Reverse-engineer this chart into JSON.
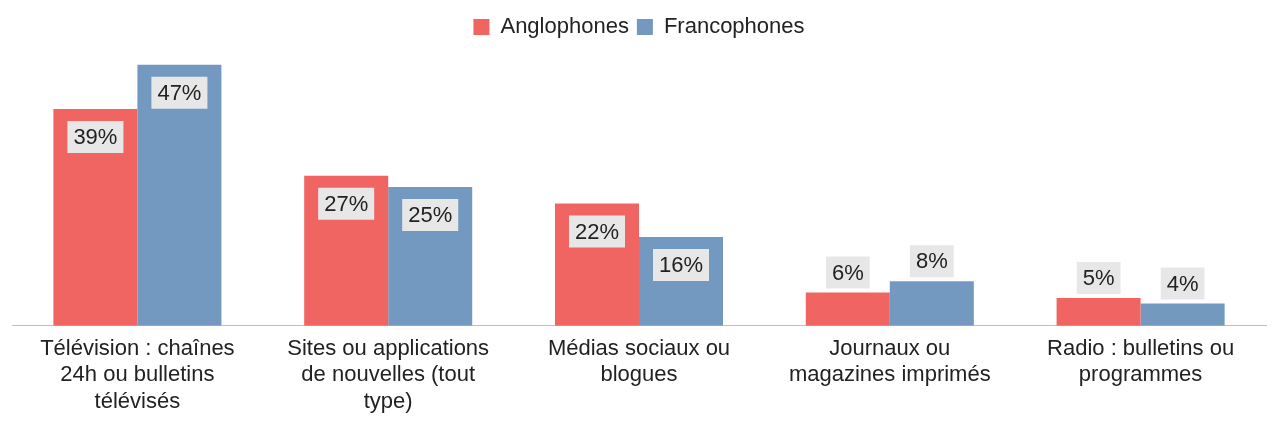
{
  "chart_data": {
    "type": "bar",
    "categories": [
      "Télévision : chaînes 24h ou bulletins télévisés",
      "Sites ou applications de nouvelles (tout type)",
      "Médias sociaux ou blogues",
      "Journaux ou magazines imprimés",
      "Radio : bulletins ou programmes"
    ],
    "series": [
      {
        "name": "Anglophones",
        "color": "#f06461",
        "values": [
          39,
          27,
          22,
          6,
          5
        ],
        "value_labels": [
          "39%",
          "27%",
          "22%",
          "6%",
          "5%"
        ]
      },
      {
        "name": "Francophones",
        "color": "#7399c0",
        "values": [
          47,
          25,
          16,
          8,
          4
        ],
        "value_labels": [
          "47%",
          "25%",
          "16%",
          "8%",
          "4%"
        ]
      }
    ],
    "legend": "top"
  }
}
